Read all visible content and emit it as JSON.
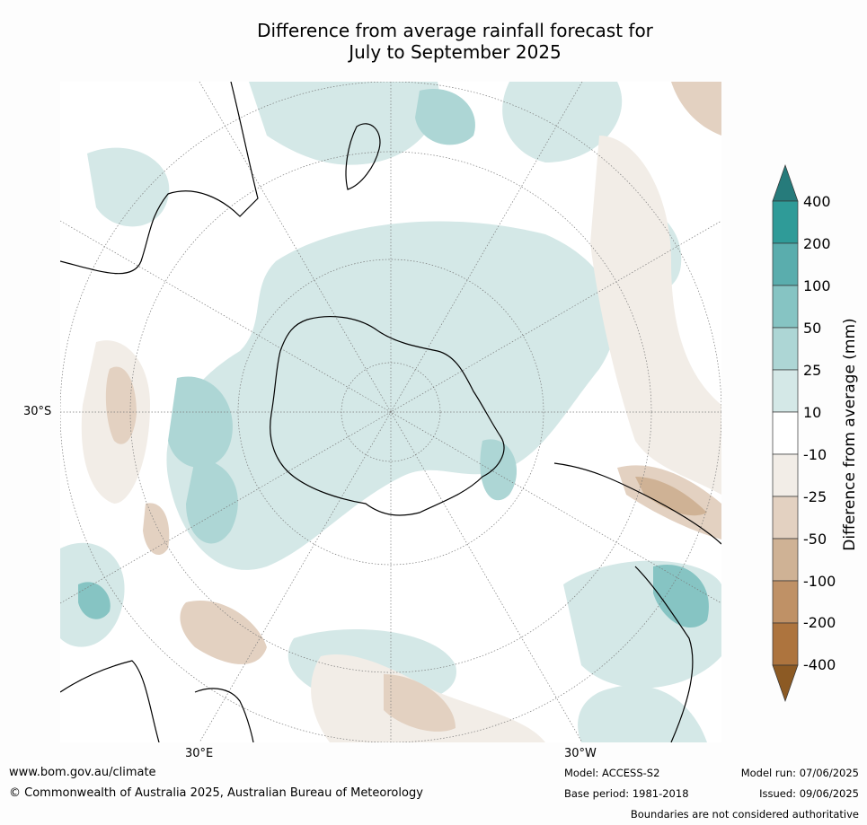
{
  "title_line1": "Difference from average rainfall forecast for",
  "title_line2": "July to September 2025",
  "map": {
    "projection": "south-polar stereographic",
    "lat_label": "30°S",
    "lon_label_east": "30°E",
    "lon_label_west": "30°W",
    "colors": {
      "wet_400": "#267b7b",
      "wet_200": "#2f9b98",
      "wet_100": "#5aadad",
      "wet_50": "#86c4c3",
      "wet_25": "#add6d5",
      "wet_10": "#d4e8e7",
      "neutral": "#ffffff",
      "dry_10": "#f2ede7",
      "dry_25": "#e3d1c1",
      "dry_50": "#cfb295",
      "dry_100": "#bf9166",
      "dry_200": "#ad743e",
      "dry_400": "#8c5a24"
    }
  },
  "colorbar": {
    "title": "Difference from average (mm)",
    "ticks": [
      "400",
      "200",
      "100",
      "50",
      "25",
      "10",
      "-10",
      "-25",
      "-50",
      "-100",
      "-200",
      "-400"
    ]
  },
  "footer": {
    "url": "www.bom.gov.au/climate",
    "copyright": "© Commonwealth of Australia 2025, Australian Bureau of Meteorology",
    "model": "Model: ACCESS-S2",
    "base_period": "Base period: 1981-2018",
    "model_run": "Model run: 07/06/2025",
    "issued": "Issued: 09/06/2025",
    "disclaimer": "Boundaries are not considered authoritative"
  }
}
